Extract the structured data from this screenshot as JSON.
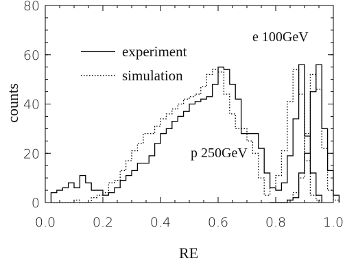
{
  "chart_data": {
    "type": "line",
    "xlabel": "RE",
    "ylabel": "counts",
    "xlim": [
      0.0,
      1.0
    ],
    "ylim": [
      0,
      80
    ],
    "x_ticks": [
      "0.0",
      "0.2",
      "0.4",
      "0.6",
      "0.8",
      "1.0"
    ],
    "y_ticks": [
      "0",
      "20",
      "40",
      "60",
      "80"
    ],
    "bin_width": 0.02,
    "legend": {
      "position": "top-left",
      "entries": [
        "experiment",
        "simulation"
      ]
    },
    "annotations": [
      "e 100GeV",
      "p 250GeV"
    ],
    "series": [
      {
        "name": "experiment",
        "style": "solid",
        "color": "#000000",
        "x_start": 0.02,
        "counts": [
          4,
          5,
          6,
          8,
          6,
          11,
          8,
          5,
          5,
          3,
          4,
          6,
          9,
          11,
          13,
          16,
          16,
          19,
          24,
          28,
          30,
          33,
          35,
          37,
          40,
          41,
          42,
          43,
          48,
          55,
          54,
          48,
          42,
          28,
          28,
          28,
          22,
          12,
          6,
          5,
          8,
          19,
          34,
          56,
          27,
          12,
          3
        ]
      },
      {
        "name": "simulation",
        "style": "dotted",
        "color": "#000000",
        "x_start": 0.02,
        "counts": [
          0,
          0,
          0,
          0,
          1,
          0,
          0,
          2,
          3,
          4,
          8,
          9,
          13,
          17,
          21,
          24,
          28,
          28,
          31,
          34,
          36,
          38,
          40,
          42,
          43,
          44,
          47,
          52,
          54,
          53,
          44,
          36,
          30,
          30,
          25,
          20,
          10,
          3,
          6,
          11,
          21,
          41,
          54,
          44,
          17,
          3,
          1
        ]
      },
      {
        "name": "experiment (e 100GeV)",
        "style": "solid",
        "color": "#000000",
        "x_start": 0.78,
        "counts": [
          0,
          0,
          0,
          1,
          2,
          12,
          20,
          45,
          56,
          30,
          13,
          3
        ]
      },
      {
        "name": "simulation (e 100GeV)",
        "style": "dotted",
        "color": "#000000",
        "x_start": 0.78,
        "counts": [
          0,
          0,
          0,
          1,
          4,
          10,
          28,
          52,
          46,
          22,
          5,
          1
        ]
      }
    ]
  }
}
